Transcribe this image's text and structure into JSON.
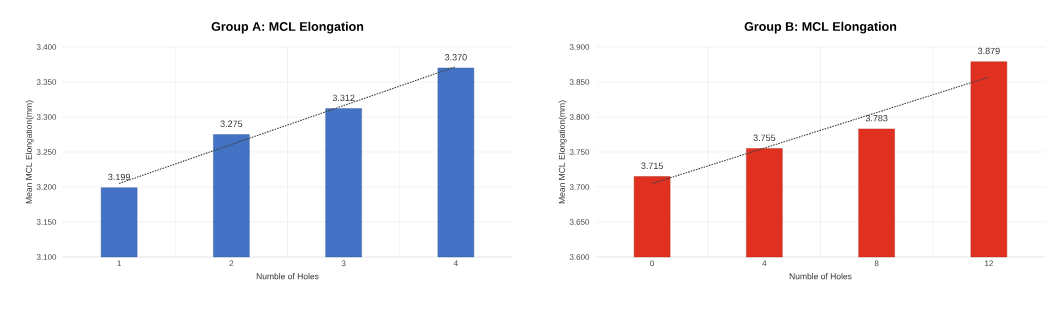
{
  "chart_data": [
    {
      "type": "bar",
      "title": "Group A: MCL Elongation",
      "xlabel": "Numble of Holes",
      "ylabel": "Mean MCL Elongation(mm)",
      "categories": [
        "1",
        "2",
        "3",
        "4"
      ],
      "series": [
        {
          "color": "#4472c4",
          "values": [
            3.199,
            3.275,
            3.312,
            3.37
          ],
          "value_labels": [
            "3.199",
            "3.275",
            "3.312",
            "3.370"
          ]
        },
        {
          "type": "line",
          "x": [
            "1",
            "4"
          ],
          "values": [
            3.205,
            3.372
          ],
          "color": "#404040",
          "line_style": "dotted",
          "marker": "none"
        }
      ],
      "ylim": [
        3.1,
        3.4
      ],
      "yticks": [
        {
          "value": 3.1,
          "label": "3.100"
        },
        {
          "value": 3.15,
          "label": "3.150"
        },
        {
          "value": 3.2,
          "label": "3.200"
        },
        {
          "value": 3.25,
          "label": "3.250"
        },
        {
          "value": 3.3,
          "label": "3.300"
        },
        {
          "value": 3.35,
          "label": "3.350"
        },
        {
          "value": 3.4,
          "label": "3.400"
        }
      ],
      "grid": true
    },
    {
      "type": "bar",
      "title": "Group B: MCL Elongation",
      "xlabel": "Numble of Holes",
      "ylabel": "Mean MCL Elongation(mm)",
      "categories": [
        "0",
        "4",
        "8",
        "12"
      ],
      "series": [
        {
          "color": "#e03020",
          "values": [
            3.715,
            3.755,
            3.783,
            3.879
          ],
          "value_labels": [
            "3.715",
            "3.755",
            "3.783",
            "3.879"
          ]
        },
        {
          "type": "line",
          "x": [
            "0",
            "12"
          ],
          "values": [
            3.705,
            3.857
          ],
          "color": "#404040",
          "line_style": "dotted",
          "marker": "none"
        }
      ],
      "ylim": [
        3.6,
        3.9
      ],
      "yticks": [
        {
          "value": 3.6,
          "label": "3.600"
        },
        {
          "value": 3.65,
          "label": "3.650"
        },
        {
          "value": 3.7,
          "label": "3.700"
        },
        {
          "value": 3.75,
          "label": "3.750"
        },
        {
          "value": 3.8,
          "label": "3.800"
        },
        {
          "value": 3.85,
          "label": "3.850"
        },
        {
          "value": 3.9,
          "label": "3.900"
        }
      ],
      "grid": true
    }
  ]
}
